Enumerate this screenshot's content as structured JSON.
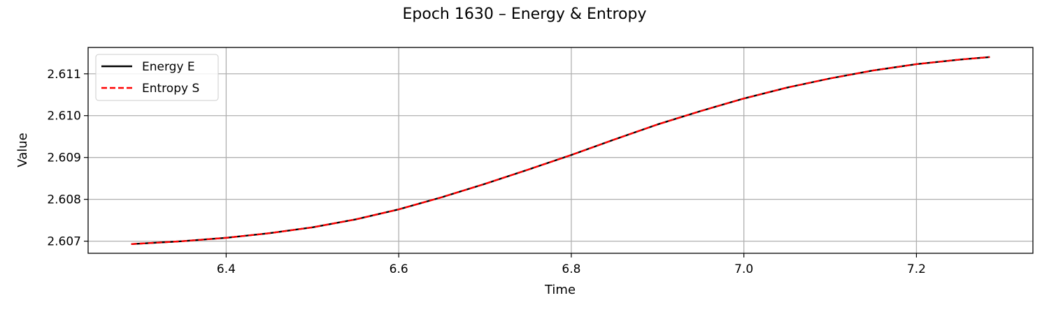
{
  "chart_data": {
    "type": "line",
    "title": "Epoch 1630 – Energy & Entropy",
    "xlabel": "Time",
    "ylabel": "Value",
    "xlim": [
      6.24,
      7.335
    ],
    "ylim": [
      2.60671,
      2.61163
    ],
    "xticks": [
      6.4,
      6.6,
      6.8,
      7.0,
      7.2
    ],
    "xtick_labels": [
      "6.4",
      "6.6",
      "6.8",
      "7.0",
      "7.2"
    ],
    "yticks": [
      2.607,
      2.608,
      2.609,
      2.61,
      2.611
    ],
    "ytick_labels": [
      "2.607",
      "2.608",
      "2.609",
      "2.610",
      "2.611"
    ],
    "grid": true,
    "legend_position": "top-left",
    "x": [
      6.29,
      6.35,
      6.4,
      6.45,
      6.5,
      6.55,
      6.6,
      6.65,
      6.7,
      6.75,
      6.8,
      6.85,
      6.9,
      6.95,
      7.0,
      7.05,
      7.1,
      7.15,
      7.2,
      7.25,
      7.285
    ],
    "series": [
      {
        "name": "Energy E",
        "color": "#000000",
        "dash": "solid",
        "values": [
          2.60693,
          2.607,
          2.60708,
          2.60719,
          2.60733,
          2.60752,
          2.60776,
          2.60805,
          2.60837,
          2.60871,
          2.60906,
          2.60943,
          2.60979,
          2.61011,
          2.61041,
          2.61067,
          2.61089,
          2.61108,
          2.61123,
          2.61134,
          2.6114
        ]
      },
      {
        "name": "Entropy S",
        "color": "#ff0000",
        "dash": "dashed",
        "values": [
          2.60693,
          2.607,
          2.60708,
          2.60719,
          2.60733,
          2.60752,
          2.60776,
          2.60805,
          2.60837,
          2.60871,
          2.60906,
          2.60943,
          2.60979,
          2.61011,
          2.61041,
          2.61067,
          2.61089,
          2.61108,
          2.61123,
          2.61134,
          2.6114
        ]
      }
    ]
  }
}
